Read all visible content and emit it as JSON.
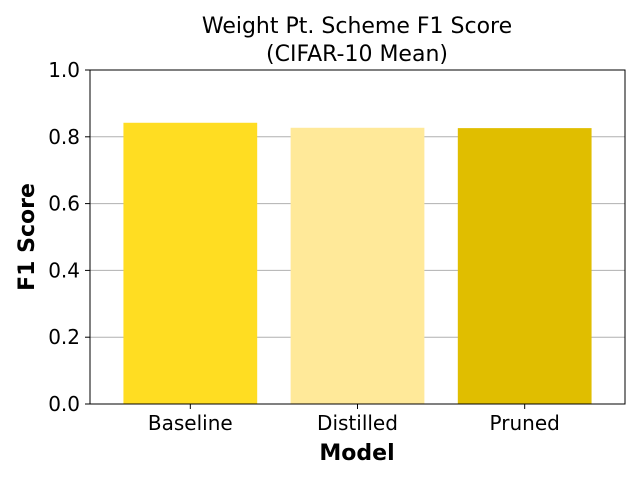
{
  "chart_data": {
    "type": "bar",
    "title_line1": "Weight Pt. Scheme F1 Score",
    "title_line2": "(CIFAR-10 Mean)",
    "xlabel": "Model",
    "ylabel": "F1 Score",
    "categories": [
      "Baseline",
      "Distilled",
      "Pruned"
    ],
    "values": [
      0.842,
      0.827,
      0.826
    ],
    "colors": [
      "#FFDD22",
      "#FFE999",
      "#E0BE00"
    ],
    "ylim": [
      0,
      1.0
    ],
    "yticks": [
      "0.0",
      "0.2",
      "0.4",
      "0.6",
      "0.8",
      "1.0"
    ],
    "grid": "horizontal",
    "legend": "none"
  }
}
